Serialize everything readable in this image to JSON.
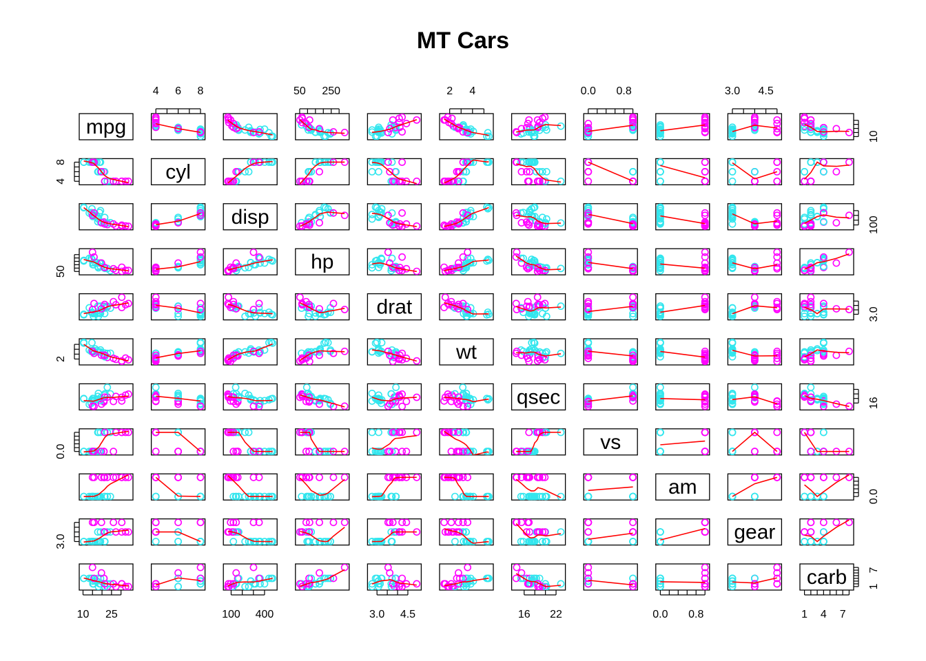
{
  "chart_data": {
    "type": "scatter",
    "title": "MT Cars",
    "variables": [
      "mpg",
      "cyl",
      "disp",
      "hp",
      "drat",
      "wt",
      "qsec",
      "vs",
      "am",
      "gear",
      "carb"
    ],
    "colors": {
      "manual": "#ff00ff",
      "automatic": "#33e6ee",
      "smooth": "#ff0000"
    },
    "ranges": {
      "mpg": [
        10.4,
        33.9
      ],
      "cyl": [
        4,
        8
      ],
      "disp": [
        71.1,
        472
      ],
      "hp": [
        52,
        335
      ],
      "drat": [
        2.76,
        4.93
      ],
      "wt": [
        1.513,
        5.424
      ],
      "qsec": [
        14.5,
        22.9
      ],
      "vs": [
        0,
        1
      ],
      "am": [
        0,
        1
      ],
      "gear": [
        3,
        5
      ],
      "carb": [
        1,
        8
      ]
    },
    "axis_ticks": {
      "top": [
        {
          "var": "cyl",
          "ticks": [
            4,
            5,
            6,
            7,
            8
          ],
          "labels": [
            {
              "v": 4,
              "t": "4"
            },
            {
              "v": 6,
              "t": "6"
            },
            {
              "v": 8,
              "t": "8"
            }
          ]
        },
        {
          "var": "hp",
          "ticks": [
            50,
            100,
            150,
            200,
            250,
            300
          ],
          "labels": [
            {
              "v": 50,
              "t": "50"
            },
            {
              "v": 250,
              "t": "250"
            }
          ]
        },
        {
          "var": "wt",
          "ticks": [
            2,
            3,
            4,
            5
          ],
          "labels": [
            {
              "v": 2,
              "t": "2"
            },
            {
              "v": 4,
              "t": "4"
            }
          ]
        },
        {
          "var": "vs",
          "ticks": [
            0,
            0.2,
            0.4,
            0.6,
            0.8,
            1.0
          ],
          "labels": [
            {
              "v": 0,
              "t": "0.0"
            },
            {
              "v": 0.8,
              "t": "0.8"
            }
          ]
        },
        {
          "var": "gear",
          "ticks": [
            3.0,
            3.5,
            4.0,
            4.5,
            5.0
          ],
          "labels": [
            {
              "v": 3.0,
              "t": "3.0"
            },
            {
              "v": 4.5,
              "t": "4.5"
            }
          ]
        }
      ],
      "bottom": [
        {
          "var": "mpg",
          "ticks": [
            10,
            15,
            20,
            25,
            30
          ],
          "labels": [
            {
              "v": 10,
              "t": "10"
            },
            {
              "v": 25,
              "t": "25"
            }
          ]
        },
        {
          "var": "disp",
          "ticks": [
            100,
            200,
            300,
            400
          ],
          "labels": [
            {
              "v": 100,
              "t": "100"
            },
            {
              "v": 400,
              "t": "400"
            }
          ]
        },
        {
          "var": "drat",
          "ticks": [
            3.0,
            3.5,
            4.0,
            4.5
          ],
          "labels": [
            {
              "v": 3.0,
              "t": "3.0"
            },
            {
              "v": 4.5,
              "t": "4.5"
            }
          ]
        },
        {
          "var": "qsec",
          "ticks": [
            16,
            18,
            20,
            22
          ],
          "labels": [
            {
              "v": 16,
              "t": "16"
            },
            {
              "v": 22,
              "t": "22"
            }
          ]
        },
        {
          "var": "am",
          "ticks": [
            0,
            0.2,
            0.4,
            0.6,
            0.8,
            1.0
          ],
          "labels": [
            {
              "v": 0,
              "t": "0.0"
            },
            {
              "v": 0.8,
              "t": "0.8"
            }
          ]
        },
        {
          "var": "carb",
          "ticks": [
            1,
            2,
            3,
            4,
            5,
            6,
            7,
            8
          ],
          "labels": [
            {
              "v": 1,
              "t": "1"
            },
            {
              "v": 4,
              "t": "4"
            },
            {
              "v": 7,
              "t": "7"
            }
          ]
        }
      ],
      "left": [
        {
          "var": "cyl",
          "ticks": [
            4,
            5,
            6,
            7,
            8
          ],
          "labels": [
            {
              "v": 4,
              "t": "4"
            },
            {
              "v": 8,
              "t": "8"
            }
          ]
        },
        {
          "var": "hp",
          "ticks": [
            50,
            100,
            150,
            200,
            250,
            300
          ],
          "labels": [
            {
              "v": 50,
              "t": "50"
            }
          ]
        },
        {
          "var": "wt",
          "ticks": [
            2,
            3,
            4,
            5
          ],
          "labels": [
            {
              "v": 2,
              "t": "2"
            }
          ]
        },
        {
          "var": "vs",
          "ticks": [
            0,
            0.2,
            0.4,
            0.6,
            0.8,
            1.0
          ],
          "labels": [
            {
              "v": 0,
              "t": "0.0"
            }
          ]
        },
        {
          "var": "gear",
          "ticks": [
            3.0,
            3.5,
            4.0,
            4.5,
            5.0
          ],
          "labels": [
            {
              "v": 3.0,
              "t": "3.0"
            }
          ]
        }
      ],
      "right": [
        {
          "var": "mpg",
          "ticks": [
            10,
            15,
            20,
            25,
            30
          ],
          "labels": [
            {
              "v": 10,
              "t": "10"
            }
          ]
        },
        {
          "var": "disp",
          "ticks": [
            100,
            200,
            300,
            400
          ],
          "labels": [
            {
              "v": 100,
              "t": "100"
            }
          ]
        },
        {
          "var": "drat",
          "ticks": [
            3.0,
            3.5,
            4.0,
            4.5
          ],
          "labels": [
            {
              "v": 3.0,
              "t": "3.0"
            }
          ]
        },
        {
          "var": "qsec",
          "ticks": [
            16,
            18,
            20,
            22
          ],
          "labels": [
            {
              "v": 16,
              "t": "16"
            }
          ]
        },
        {
          "var": "am",
          "ticks": [
            0,
            0.2,
            0.4,
            0.6,
            0.8,
            1.0
          ],
          "labels": [
            {
              "v": 0,
              "t": "0.0"
            }
          ]
        },
        {
          "var": "carb",
          "ticks": [
            1,
            2,
            3,
            4,
            5,
            6,
            7,
            8
          ],
          "labels": [
            {
              "v": 1,
              "t": "1"
            },
            {
              "v": 7,
              "t": "7"
            }
          ]
        }
      ]
    },
    "columns": [
      "mpg",
      "cyl",
      "disp",
      "hp",
      "drat",
      "wt",
      "qsec",
      "vs",
      "am",
      "gear",
      "carb"
    ],
    "rows": [
      [
        21.0,
        6,
        160.0,
        110,
        3.9,
        2.62,
        16.46,
        0,
        1,
        4,
        4
      ],
      [
        21.0,
        6,
        160.0,
        110,
        3.9,
        2.875,
        17.02,
        0,
        1,
        4,
        4
      ],
      [
        22.8,
        4,
        108.0,
        93,
        3.85,
        2.32,
        18.61,
        1,
        1,
        4,
        1
      ],
      [
        21.4,
        6,
        258.0,
        110,
        3.08,
        3.215,
        19.44,
        1,
        0,
        3,
        1
      ],
      [
        18.7,
        8,
        360.0,
        175,
        3.15,
        3.44,
        17.02,
        0,
        0,
        3,
        2
      ],
      [
        18.1,
        6,
        225.0,
        105,
        2.76,
        3.46,
        20.22,
        1,
        0,
        3,
        1
      ],
      [
        14.3,
        8,
        360.0,
        245,
        3.21,
        3.57,
        15.84,
        0,
        0,
        3,
        4
      ],
      [
        24.4,
        4,
        146.7,
        62,
        3.69,
        3.19,
        20.0,
        1,
        0,
        4,
        2
      ],
      [
        22.8,
        4,
        140.8,
        95,
        3.92,
        3.15,
        22.9,
        1,
        0,
        4,
        2
      ],
      [
        19.2,
        6,
        167.6,
        123,
        3.92,
        3.44,
        18.3,
        1,
        0,
        4,
        4
      ],
      [
        17.8,
        6,
        167.6,
        123,
        3.92,
        3.44,
        18.9,
        1,
        0,
        4,
        4
      ],
      [
        16.4,
        8,
        275.8,
        180,
        3.07,
        4.07,
        17.4,
        0,
        0,
        3,
        3
      ],
      [
        17.3,
        8,
        275.8,
        180,
        3.07,
        3.73,
        17.6,
        0,
        0,
        3,
        3
      ],
      [
        15.2,
        8,
        275.8,
        180,
        3.07,
        3.78,
        18.0,
        0,
        0,
        3,
        3
      ],
      [
        10.4,
        8,
        472.0,
        205,
        2.93,
        5.25,
        17.98,
        0,
        0,
        3,
        4
      ],
      [
        10.4,
        8,
        460.0,
        215,
        3.0,
        5.424,
        17.82,
        0,
        0,
        3,
        4
      ],
      [
        14.7,
        8,
        440.0,
        230,
        3.23,
        5.345,
        17.42,
        0,
        0,
        3,
        4
      ],
      [
        32.4,
        4,
        78.7,
        66,
        4.08,
        2.2,
        19.47,
        1,
        1,
        4,
        1
      ],
      [
        30.4,
        4,
        75.7,
        52,
        4.93,
        1.615,
        18.52,
        1,
        1,
        4,
        2
      ],
      [
        33.9,
        4,
        71.1,
        65,
        4.22,
        1.835,
        19.9,
        1,
        1,
        4,
        1
      ],
      [
        21.5,
        4,
        120.1,
        97,
        3.7,
        2.465,
        20.01,
        1,
        0,
        3,
        1
      ],
      [
        15.5,
        8,
        318.0,
        150,
        2.76,
        3.52,
        16.87,
        0,
        0,
        3,
        2
      ],
      [
        15.2,
        8,
        304.0,
        150,
        3.15,
        3.435,
        17.3,
        0,
        0,
        3,
        2
      ],
      [
        13.3,
        8,
        350.0,
        245,
        3.73,
        3.84,
        15.41,
        0,
        0,
        3,
        4
      ],
      [
        19.2,
        8,
        400.0,
        175,
        3.08,
        3.845,
        17.05,
        0,
        0,
        3,
        2
      ],
      [
        27.3,
        4,
        79.0,
        66,
        4.08,
        1.935,
        18.9,
        1,
        1,
        4,
        1
      ],
      [
        26.0,
        4,
        120.3,
        91,
        4.43,
        2.14,
        16.7,
        0,
        1,
        5,
        2
      ],
      [
        30.4,
        4,
        95.1,
        113,
        3.77,
        1.513,
        16.9,
        1,
        1,
        5,
        2
      ],
      [
        15.8,
        8,
        351.0,
        264,
        4.22,
        3.17,
        14.5,
        0,
        1,
        5,
        4
      ],
      [
        19.7,
        6,
        145.0,
        175,
        3.62,
        2.77,
        15.5,
        0,
        1,
        5,
        6
      ],
      [
        15.0,
        8,
        301.0,
        335,
        3.54,
        3.57,
        14.6,
        0,
        1,
        5,
        8
      ],
      [
        21.4,
        4,
        121.0,
        109,
        4.11,
        2.78,
        18.6,
        1,
        1,
        4,
        2
      ]
    ]
  }
}
